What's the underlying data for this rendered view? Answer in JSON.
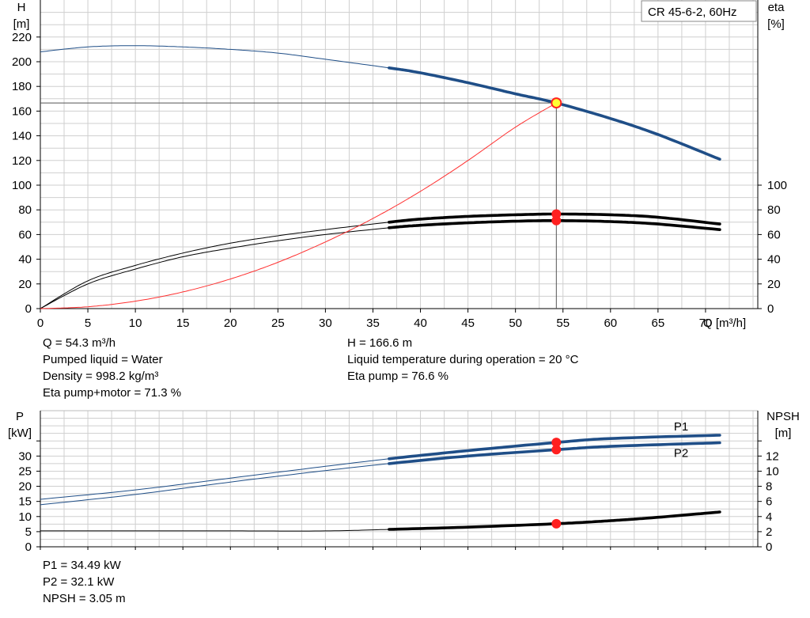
{
  "chart_title": "CR 45-6-2, 60Hz",
  "chart_data": [
    {
      "type": "line",
      "name": "performance",
      "ylabel_left": [
        "H",
        "[m]"
      ],
      "ylabel_right": [
        "eta",
        "[%]"
      ],
      "xlabel": "Q [m³/h]",
      "x_ticks": [
        0,
        5,
        10,
        15,
        20,
        25,
        30,
        35,
        40,
        45,
        50,
        55,
        60,
        65,
        70
      ],
      "x_range": [
        0,
        75.5
      ],
      "y_left_ticks": [
        0,
        20,
        40,
        60,
        80,
        100,
        120,
        140,
        160,
        180,
        200,
        220
      ],
      "y_left_range": [
        0,
        250
      ],
      "y_right_ticks": [
        0,
        20,
        40,
        60,
        80,
        100
      ],
      "operating_point": {
        "x": 54.3,
        "y": 166.6
      },
      "series": [
        {
          "id": "head",
          "color": "#1f4e87",
          "bold_from": 36.7,
          "x": [
            0,
            5,
            10,
            15,
            20,
            25,
            30,
            36.7,
            40,
            45,
            50,
            54.3,
            60,
            65,
            71.5
          ],
          "y": [
            208,
            212,
            213,
            212,
            210,
            207,
            202,
            195,
            191,
            183,
            174,
            166.6,
            154,
            141,
            121
          ]
        },
        {
          "id": "eta-pump",
          "color": "#000000",
          "bold_from": 36.7,
          "x": [
            0,
            5,
            10,
            15,
            20,
            25,
            30,
            36.7,
            40,
            45,
            50,
            54.3,
            60,
            65,
            71.5
          ],
          "y": [
            0,
            22.5,
            35,
            45,
            53,
            59,
            64,
            70,
            72.5,
            74.7,
            76,
            76.6,
            76,
            74,
            68.5
          ]
        },
        {
          "id": "eta-pump-motor",
          "color": "#000000",
          "bold_from": 36.7,
          "x": [
            0,
            5,
            10,
            15,
            20,
            25,
            30,
            36.7,
            40,
            45,
            50,
            54.3,
            60,
            65,
            71.5
          ],
          "y": [
            0,
            20,
            32,
            42,
            49,
            55,
            60,
            65.5,
            67.5,
            69.5,
            70.8,
            71.3,
            70.5,
            68.5,
            64
          ]
        },
        {
          "id": "eta-curve",
          "color": "#ff3030",
          "bold_from": null,
          "x": [
            0,
            5,
            10,
            15,
            20,
            25,
            30,
            35,
            40,
            45,
            50,
            54.3
          ],
          "y": [
            0,
            1.5,
            6,
            13.5,
            24,
            37.5,
            54,
            73,
            95,
            120,
            147,
            166.6
          ]
        }
      ]
    },
    {
      "type": "line",
      "name": "power-npsh",
      "ylabel_left": [
        "P",
        "[kW]"
      ],
      "ylabel_right": [
        "NPSH",
        "[m]"
      ],
      "x_range": [
        0,
        75.5
      ],
      "y_left_ticks": [
        0,
        5,
        10,
        15,
        20,
        25,
        30
      ],
      "y_left_range": [
        0,
        45
      ],
      "y_right_ticks": [
        0,
        2,
        4,
        6,
        8,
        10,
        12
      ],
      "y_right_range": [
        0,
        18
      ],
      "series": [
        {
          "id": "P1",
          "name": "P1",
          "axis": "left",
          "color": "#1f4e87",
          "bold_from": 36.7,
          "x": [
            0,
            10,
            20,
            30,
            36.7,
            45,
            54.3,
            60,
            71.5
          ],
          "y": [
            15.7,
            18.8,
            22.7,
            26.6,
            29.1,
            31.8,
            34.49,
            35.8,
            36.9
          ]
        },
        {
          "id": "P2",
          "name": "P2",
          "axis": "left",
          "color": "#1f4e87",
          "bold_from": 36.7,
          "x": [
            0,
            10,
            20,
            30,
            36.7,
            45,
            54.3,
            60,
            71.5
          ],
          "y": [
            13.9,
            17.3,
            21.4,
            25.2,
            27.5,
            30.0,
            32.1,
            33.2,
            34.4
          ]
        },
        {
          "id": "NPSH",
          "name": "",
          "axis": "right",
          "color": "#000000",
          "bold_from": 36.7,
          "x": [
            0,
            10,
            20,
            30,
            36.7,
            45,
            54.3,
            60,
            65,
            71.5
          ],
          "y": [
            2.1,
            2.1,
            2.1,
            2.1,
            2.3,
            2.6,
            3.05,
            3.45,
            3.9,
            4.6
          ]
        }
      ],
      "op_points": [
        {
          "axis": "left",
          "y": 34.49
        },
        {
          "axis": "left",
          "y": 32.1
        },
        {
          "axis": "right",
          "y": 3.05
        }
      ]
    }
  ],
  "info_top_left": [
    "Q = 54.3 m³/h",
    "Pumped liquid = Water",
    "Density = 998.2 kg/m³",
    "Eta pump+motor = 71.3 %"
  ],
  "info_top_right": [
    "H = 166.6 m",
    "Liquid temperature during operation = 20 °C",
    "Eta pump = 76.6 %"
  ],
  "info_bottom": [
    "P1 = 34.49 kW",
    "P2 = 32.1 kW",
    "NPSH = 3.05 m"
  ],
  "colors": {
    "head": "#1f4e87",
    "eta_curve": "#ff3030",
    "op_point": "#ff2020",
    "op_fill": "#ffff33"
  }
}
